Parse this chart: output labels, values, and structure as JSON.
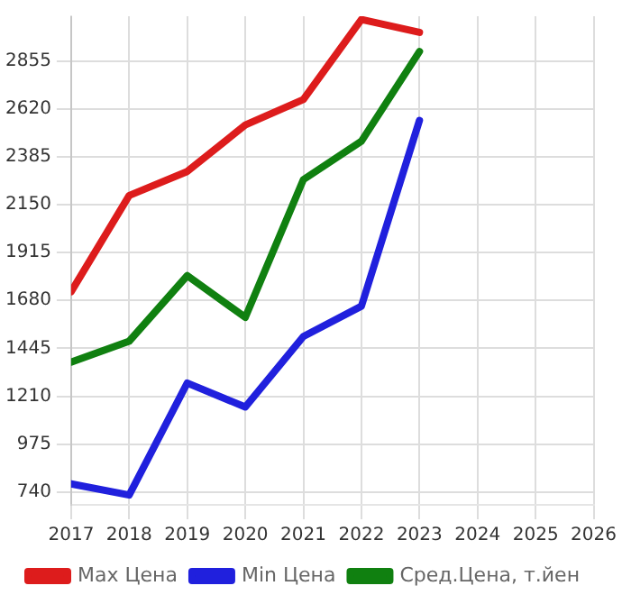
{
  "chart_data": {
    "type": "line",
    "x": [
      2017,
      2018,
      2019,
      2020,
      2021,
      2022,
      2023
    ],
    "series": [
      {
        "name": "Max Цена",
        "color": "#dd1c1c",
        "values": [
          1723,
          2195,
          2313,
          2541,
          2666,
          3059,
          2996
        ]
      },
      {
        "name": "Min Цена",
        "color": "#2020dd",
        "values": [
          780,
          725,
          1275,
          1157,
          1503,
          1652,
          2564
        ]
      },
      {
        "name": "Сред.Цена, т.йен",
        "color": "#108010",
        "values": [
          1377,
          1480,
          1802,
          1597,
          2273,
          2462,
          2902
        ]
      }
    ],
    "xlim": [
      2017,
      2026
    ],
    "xticks": [
      2017,
      2018,
      2019,
      2020,
      2021,
      2022,
      2023,
      2024,
      2025,
      2026
    ],
    "ylim": [
      677,
      3075
    ],
    "yticks": [
      740,
      975,
      1210,
      1445,
      1680,
      1915,
      2150,
      2385,
      2620,
      2855
    ],
    "grid": true,
    "legend": "bottom",
    "marker": "none",
    "line_style": "solid"
  }
}
